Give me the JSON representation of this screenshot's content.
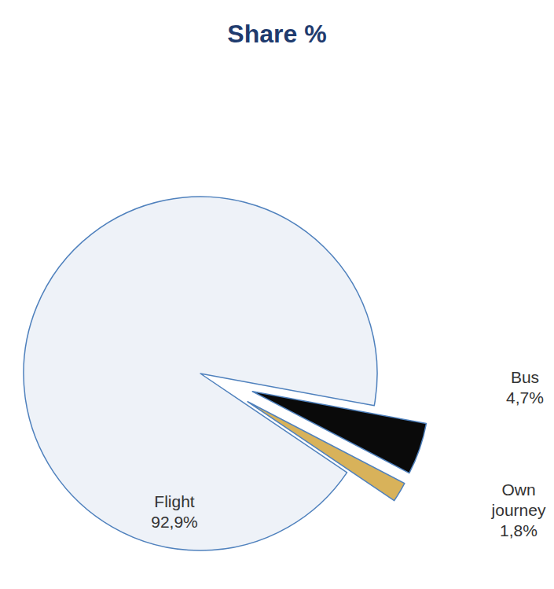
{
  "chart_data": {
    "type": "pie",
    "title": "Share %",
    "categories": [
      "Flight",
      "Bus",
      "Own journey"
    ],
    "values": [
      92.9,
      4.7,
      1.8
    ],
    "value_labels": [
      "92,9%",
      "4,7%",
      "1,8%"
    ],
    "colors": [
      "#eef2f8",
      "#0a0a0a",
      "#d8b25a"
    ],
    "data_labels": true
  }
}
